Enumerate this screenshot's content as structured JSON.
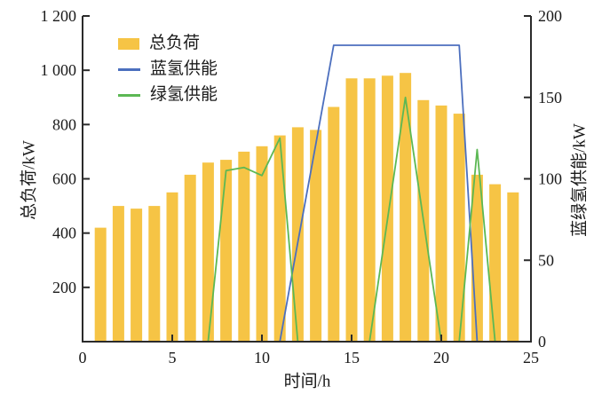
{
  "chart_data": {
    "type": "bar",
    "title": "",
    "x_hours": [
      1,
      2,
      3,
      4,
      5,
      6,
      7,
      8,
      9,
      10,
      11,
      12,
      13,
      14,
      15,
      16,
      17,
      18,
      19,
      20,
      21,
      22,
      23,
      24
    ],
    "series": [
      {
        "name": "总负荷",
        "type": "bar",
        "axis": "left",
        "color": "#F6C445",
        "values": [
          420,
          500,
          490,
          500,
          550,
          615,
          660,
          670,
          700,
          720,
          760,
          790,
          780,
          865,
          970,
          970,
          980,
          990,
          890,
          870,
          840,
          615,
          580,
          550
        ]
      },
      {
        "name": "蓝氢供能",
        "type": "line",
        "axis": "right",
        "color": "#4C6FBE",
        "values": [
          0,
          0,
          0,
          0,
          0,
          0,
          0,
          0,
          0,
          0,
          0,
          61,
          121,
          182,
          182,
          182,
          182,
          182,
          182,
          182,
          182,
          0,
          0,
          0
        ]
      },
      {
        "name": "绿氢供能",
        "type": "line",
        "axis": "right",
        "color": "#5CB854",
        "values": [
          0,
          0,
          0,
          0,
          0,
          0,
          0,
          105,
          107,
          102,
          125,
          0,
          0,
          0,
          0,
          0,
          75,
          150,
          75,
          0,
          0,
          118,
          0,
          0
        ]
      }
    ],
    "xlabel": "时间/h",
    "ylabel_left": "总负荷/kW",
    "ylabel_right": "蓝绿氢供能/kW",
    "xlim": [
      0,
      25
    ],
    "ylim_left": [
      0,
      1200
    ],
    "ylim_right": [
      0,
      200
    ],
    "xticks": {
      "values": [
        0,
        5,
        10,
        15,
        20,
        25
      ],
      "labels": [
        "0",
        "5",
        "10",
        "15",
        "20",
        "25"
      ]
    },
    "yticks_left": {
      "values": [
        200,
        400,
        600,
        800,
        1000,
        1200
      ],
      "labels": [
        "200",
        "400",
        "600",
        "800",
        "1 000",
        "1 200"
      ]
    },
    "yticks_right": {
      "values": [
        0,
        50,
        100,
        150,
        200
      ],
      "labels": [
        "0",
        "50",
        "100",
        "150",
        "200"
      ]
    },
    "legend": {
      "position": "upper-left",
      "items": [
        {
          "label": "总负荷",
          "swatch": "bar"
        },
        {
          "label": "蓝氢供能",
          "swatch": "line-blue"
        },
        {
          "label": "绿氢供能",
          "swatch": "line-green"
        }
      ]
    },
    "grid": false,
    "axis_color": "#2b2b2b",
    "text_color": "#1a1a1a"
  }
}
